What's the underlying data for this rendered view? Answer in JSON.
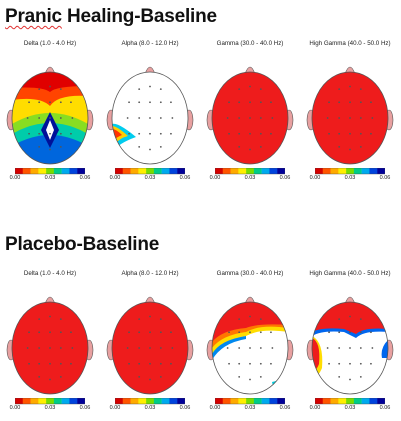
{
  "sections": [
    {
      "title": "Pranic Healing-Baseline",
      "maps": [
        {
          "label": "Delta (1.0 - 4.0 Hz)",
          "pattern": "gradient"
        },
        {
          "label": "Alpha (8.0 - 12.0 Hz)",
          "pattern": "white-left-patch"
        },
        {
          "label": "Gamma (30.0 - 40.0 Hz)",
          "pattern": "red"
        },
        {
          "label": "High Gamma (40.0 - 50.0 Hz)",
          "pattern": "red"
        }
      ]
    },
    {
      "title": "Placebo-Baseline",
      "maps": [
        {
          "label": "Delta (1.0 - 4.0 Hz)",
          "pattern": "red"
        },
        {
          "label": "Alpha (8.0 - 12.0 Hz)",
          "pattern": "red"
        },
        {
          "label": "Gamma (30.0 - 40.0 Hz)",
          "pattern": "red-top"
        },
        {
          "label": "High Gamma (40.0 - 50.0 Hz)",
          "pattern": "red-top-mixed"
        }
      ]
    }
  ],
  "colorbar": {
    "ticks": [
      "0.00",
      "0.03",
      "0.06"
    ],
    "colors": [
      "#d40000",
      "#ff5500",
      "#ffaa00",
      "#ffee00",
      "#77dd00",
      "#00cc88",
      "#00aaee",
      "#0044dd",
      "#000099"
    ]
  },
  "colors": {
    "red": "#ee1c1c",
    "outline": "#555555",
    "ear": "#e8a0a0"
  }
}
